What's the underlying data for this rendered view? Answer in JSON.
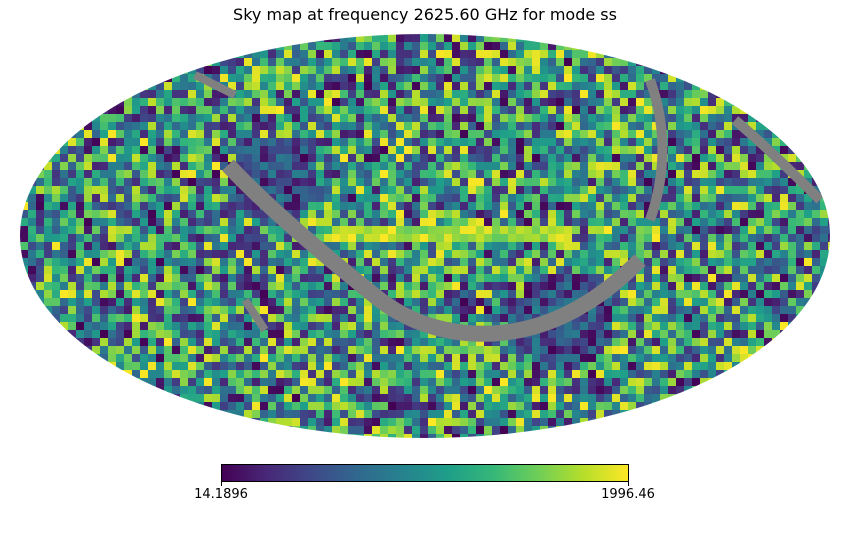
{
  "chart_data": {
    "type": "heatmap",
    "projection": "mollweide",
    "title": "Sky map at frequency 2625.60 GHz for mode ss",
    "colormap": "viridis",
    "colorbar": {
      "orientation": "horizontal",
      "placement": "bottom",
      "min": 14.1896,
      "max": 1996.46,
      "min_label": "14.1896",
      "max_label": "1996.46"
    },
    "colors": {
      "masked": "#808080",
      "background": "#ffffff"
    }
  }
}
